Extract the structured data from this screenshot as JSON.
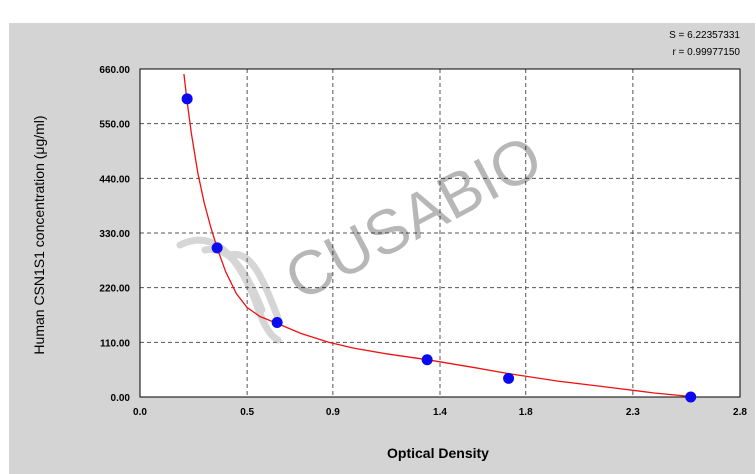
{
  "chart_data": {
    "type": "scatter",
    "title": "",
    "xlabel": "Optical Density",
    "ylabel": "Human CSN1S1 concentration (μg/ml)",
    "xlim": [
      0.0,
      2.8
    ],
    "ylim": [
      0,
      660
    ],
    "x_ticks": [
      0.0,
      0.5,
      0.9,
      1.4,
      1.8,
      2.3,
      2.8
    ],
    "x_tick_labels": [
      "0.0",
      "0.5",
      "0.9",
      "1.4",
      "1.8",
      "2.3",
      "2.8"
    ],
    "y_ticks": [
      0,
      110,
      220,
      330,
      440,
      550,
      660
    ],
    "y_tick_labels": [
      "0.00",
      "110.00",
      "220.00",
      "330.00",
      "440.00",
      "550.00",
      "660.00"
    ],
    "grid": true,
    "series": [
      {
        "kind": "points",
        "x": [
          0.22,
          0.36,
          0.64,
          1.34,
          1.72,
          2.57
        ],
        "y": [
          600,
          300,
          150,
          75,
          37.5,
          0
        ],
        "color": "#0a0aef"
      },
      {
        "kind": "fit-curve",
        "x": [
          0.205,
          0.22,
          0.24,
          0.27,
          0.3,
          0.33,
          0.36,
          0.4,
          0.45,
          0.5,
          0.56,
          0.64,
          0.75,
          0.88,
          1.0,
          1.15,
          1.34,
          1.55,
          1.72,
          1.95,
          2.2,
          2.4,
          2.57
        ],
        "y": [
          650,
          595,
          530,
          450,
          390,
          342,
          300,
          252,
          208,
          180,
          162,
          148,
          128,
          110,
          98,
          87,
          75,
          60,
          47,
          32,
          19,
          8,
          1
        ],
        "color": "#ee1111"
      }
    ],
    "annotations": [
      "S = 6.22357331",
      "r = 0.99977150"
    ],
    "watermark": "CUSABIO"
  }
}
